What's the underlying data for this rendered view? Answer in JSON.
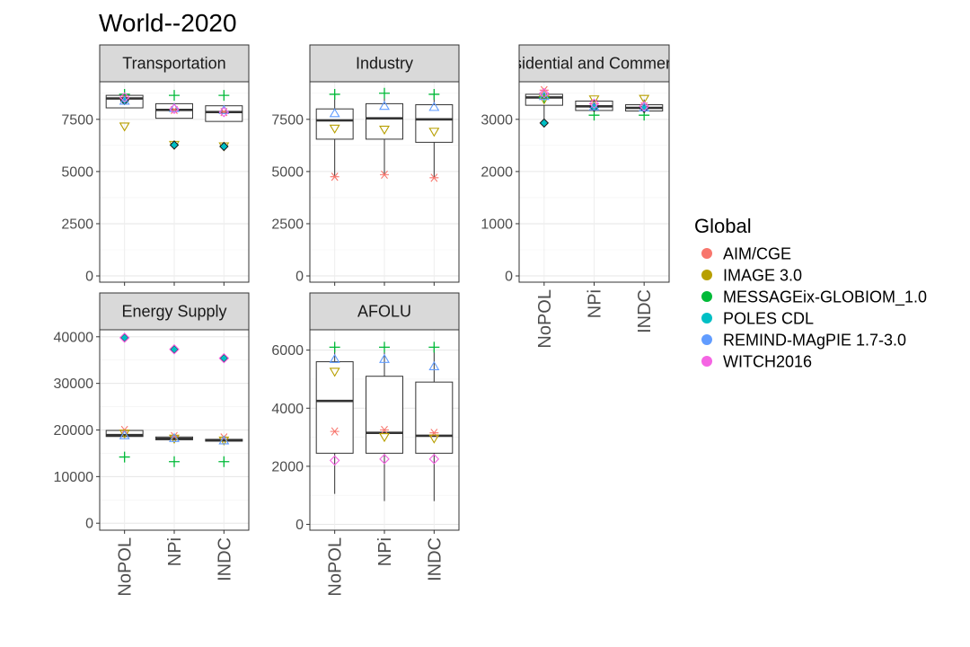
{
  "chart_data": {
    "type": "box",
    "title": "World--2020",
    "xlabel": "",
    "ylabel": "",
    "categories": [
      "NoPOL",
      "NPi",
      "INDC"
    ],
    "legend": {
      "title": "Global",
      "position": "right",
      "entries": [
        {
          "name": "AIM/CGE",
          "color": "#F8766D",
          "shape": "asterisk"
        },
        {
          "name": "IMAGE 3.0",
          "color": "#B79F00",
          "shape": "triangle-down"
        },
        {
          "name": "MESSAGEix-GLOBIOM_1.0",
          "color": "#00BA38",
          "shape": "plus"
        },
        {
          "name": "POLES CDL",
          "color": "#00BFC4",
          "shape": "filled-diamond"
        },
        {
          "name": "REMIND-MAgPIE 1.7-3.0",
          "color": "#619CFF",
          "shape": "triangle-up"
        },
        {
          "name": "WITCH2016",
          "color": "#F564E3",
          "shape": "diamond"
        }
      ]
    },
    "panels": [
      {
        "label": "Transportation",
        "ylim": [
          -300,
          9300
        ],
        "yticks": [
          0,
          2500,
          5000,
          7500
        ],
        "ytick_labels": [
          "0",
          "2500",
          "5000",
          "7500"
        ],
        "boxes": [
          {
            "category": "NoPOL",
            "min": 8050,
            "q1": 8050,
            "median": 8500,
            "q3": 8650,
            "max": 8700
          },
          {
            "category": "NPi",
            "min": 7550,
            "q1": 7550,
            "median": 7950,
            "q3": 8250,
            "max": 8250
          },
          {
            "category": "INDC",
            "min": 7400,
            "q1": 7400,
            "median": 7850,
            "q3": 8150,
            "max": 8150
          }
        ],
        "points": [
          {
            "model": "AIM/CGE",
            "values": [
              8500,
              7950,
              7850
            ]
          },
          {
            "model": "IMAGE 3.0",
            "values": [
              7150,
              6270,
              6200
            ]
          },
          {
            "model": "MESSAGEix-GLOBIOM_1.0",
            "values": [
              8700,
              8650,
              8650
            ]
          },
          {
            "model": "POLES CDL",
            "values": [
              8400,
              6270,
              6200
            ]
          },
          {
            "model": "REMIND-MAgPIE 1.7-3.0",
            "values": [
              8400,
              8050,
              7950
            ]
          },
          {
            "model": "WITCH2016",
            "values": [
              8550,
              8000,
              7850
            ]
          }
        ]
      },
      {
        "label": "Industry",
        "ylim": [
          -300,
          9300
        ],
        "yticks": [
          0,
          2500,
          5000,
          7500
        ],
        "ytick_labels": [
          "0",
          "2500",
          "5000",
          "7500"
        ],
        "boxes": [
          {
            "category": "NoPOL",
            "min": 4800,
            "q1": 6550,
            "median": 7450,
            "q3": 8000,
            "max": 8700
          },
          {
            "category": "NPi",
            "min": 4850,
            "q1": 6550,
            "median": 7550,
            "q3": 8250,
            "max": 8750
          },
          {
            "category": "INDC",
            "min": 4700,
            "q1": 6400,
            "median": 7500,
            "q3": 8200,
            "max": 8700
          }
        ],
        "points": [
          {
            "model": "AIM/CGE",
            "values": [
              4750,
              4850,
              4700
            ]
          },
          {
            "model": "IMAGE 3.0",
            "values": [
              7050,
              7000,
              6900
            ]
          },
          {
            "model": "MESSAGEix-GLOBIOM_1.0",
            "values": [
              8700,
              8750,
              8700
            ]
          },
          {
            "model": "REMIND-MAgPIE 1.7-3.0",
            "values": [
              7800,
              8150,
              8100
            ]
          }
        ]
      },
      {
        "label": "Residential and Commercial",
        "ylim": [
          -120,
          3720
        ],
        "yticks": [
          0,
          1000,
          2000,
          3000
        ],
        "ytick_labels": [
          "0",
          "1000",
          "2000",
          "3000"
        ],
        "boxes": [
          {
            "category": "NoPOL",
            "min": 2950,
            "q1": 3270,
            "median": 3420,
            "q3": 3480,
            "max": 3520
          },
          {
            "category": "NPi",
            "min": 3080,
            "q1": 3170,
            "median": 3250,
            "q3": 3350,
            "max": 3380
          },
          {
            "category": "INDC",
            "min": 3080,
            "q1": 3160,
            "median": 3220,
            "q3": 3280,
            "max": 3380
          }
        ],
        "points": [
          {
            "model": "AIM/CGE",
            "values": [
              3560,
              3300,
              3250
            ]
          },
          {
            "model": "IMAGE 3.0",
            "values": [
              3380,
              3380,
              3390
            ]
          },
          {
            "model": "MESSAGEix-GLOBIOM_1.0",
            "values": [
              3420,
              3080,
              3080
            ]
          },
          {
            "model": "POLES CDL",
            "values": [
              2930,
              3230,
              3210
            ]
          },
          {
            "model": "REMIND-MAgPIE 1.7-3.0",
            "values": [
              3450,
              3250,
              3230
            ]
          },
          {
            "model": "WITCH2016",
            "values": [
              3500,
              3300,
              3250
            ]
          }
        ]
      },
      {
        "label": "Energy Supply",
        "ylim": [
          -1500,
          41500
        ],
        "yticks": [
          0,
          10000,
          20000,
          30000,
          40000
        ],
        "ytick_labels": [
          "0",
          "10000",
          "20000",
          "30000",
          "40000"
        ],
        "boxes": [
          {
            "category": "NoPOL",
            "min": 18600,
            "q1": 18600,
            "median": 18900,
            "q3": 19900,
            "max": 19900
          },
          {
            "category": "NPi",
            "min": 17900,
            "q1": 17900,
            "median": 18100,
            "q3": 18500,
            "max": 18500
          },
          {
            "category": "INDC",
            "min": 17600,
            "q1": 17600,
            "median": 17800,
            "q3": 18000,
            "max": 18000
          }
        ],
        "points": [
          {
            "model": "AIM/CGE",
            "values": [
              20000,
              18700,
              18400
            ]
          },
          {
            "model": "IMAGE 3.0",
            "values": [
              19200,
              18100,
              17700
            ]
          },
          {
            "model": "MESSAGEix-GLOBIOM_1.0",
            "values": [
              14200,
              13200,
              13200
            ]
          },
          {
            "model": "POLES CDL",
            "values": [
              39800,
              37300,
              35400
            ]
          },
          {
            "model": "REMIND-MAgPIE 1.7-3.0",
            "values": [
              18900,
              18300,
              17800
            ]
          },
          {
            "model": "WITCH2016",
            "values": [
              39800,
              37300,
              35400
            ]
          }
        ]
      },
      {
        "label": "AFOLU",
        "ylim": [
          -200,
          6700
        ],
        "yticks": [
          0,
          2000,
          4000,
          6000
        ],
        "ytick_labels": [
          "0",
          "2000",
          "4000",
          "6000"
        ],
        "boxes": [
          {
            "category": "NoPOL",
            "min": 1050,
            "q1": 2450,
            "median": 4250,
            "q3": 5600,
            "max": 6100
          },
          {
            "category": "NPi",
            "min": 800,
            "q1": 2450,
            "median": 3150,
            "q3": 5100,
            "max": 6100
          },
          {
            "category": "INDC",
            "min": 800,
            "q1": 2450,
            "median": 3050,
            "q3": 4900,
            "max": 6100
          }
        ],
        "points": [
          {
            "model": "AIM/CGE",
            "values": [
              3200,
              3250,
              3150
            ]
          },
          {
            "model": "IMAGE 3.0",
            "values": [
              5250,
              3000,
              2950
            ]
          },
          {
            "model": "MESSAGEix-GLOBIOM_1.0",
            "values": [
              6100,
              6100,
              6100
            ]
          },
          {
            "model": "REMIND-MAgPIE 1.7-3.0",
            "values": [
              5700,
              5700,
              5450
            ]
          },
          {
            "model": "WITCH2016",
            "values": [
              2200,
              2250,
              2250
            ]
          }
        ]
      }
    ]
  }
}
